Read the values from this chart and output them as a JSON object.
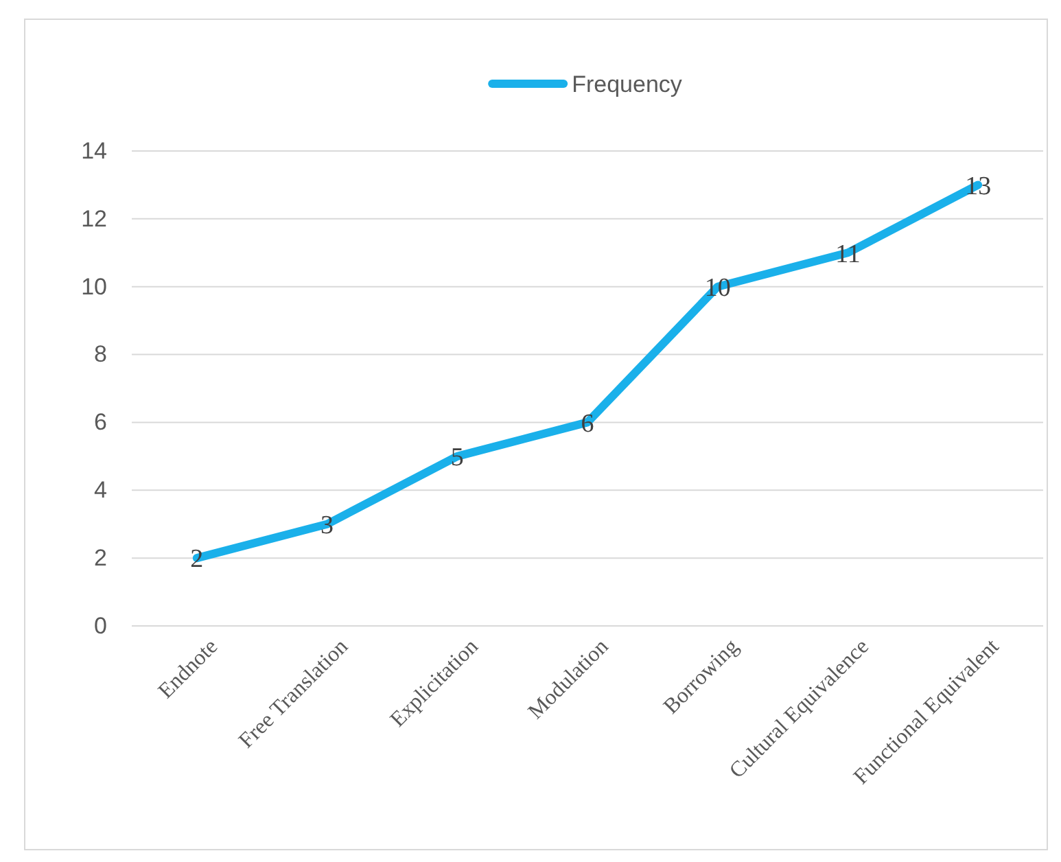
{
  "chart_data": {
    "type": "line",
    "categories": [
      "Endnote",
      "Free Translation",
      "Explicitation",
      "Modulation",
      "Borrowing",
      "Cultural Equivalence",
      "Functional Equivalent"
    ],
    "series": [
      {
        "name": "Frequency",
        "color": "#1ab0ea",
        "values": [
          2,
          3,
          5,
          6,
          10,
          11,
          13
        ]
      }
    ],
    "ylim": [
      0,
      14
    ],
    "yticks": [
      0,
      2,
      4,
      6,
      8,
      10,
      12,
      14
    ],
    "grid": "y",
    "legend": "top",
    "data_labels": true,
    "marker": "none",
    "line_style": "solid"
  }
}
